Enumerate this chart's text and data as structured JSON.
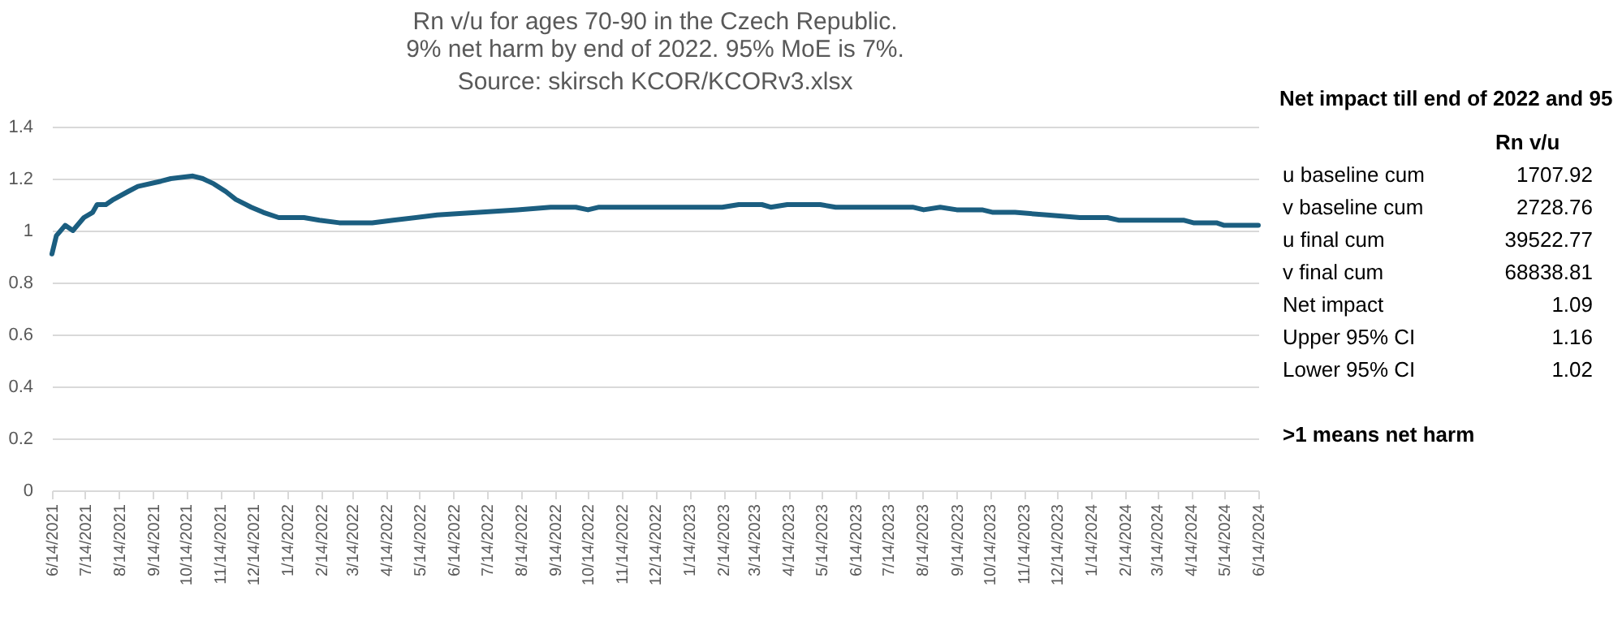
{
  "chart_data": [
    {
      "type": "line",
      "title": "Rn v/u for ages 70-90 in the Czech Republic.",
      "subtitle": "9% net harm by end of 2022. 95% MoE is 7%.",
      "annotations": [
        "Source: skirsch KCOR/KCORv3.xlsx"
      ],
      "x": [
        "2021-06-14",
        "2021-06-18",
        "2021-06-26",
        "2021-07-03",
        "2021-07-13",
        "2021-07-21",
        "2021-07-25",
        "2021-08-02",
        "2021-08-09",
        "2021-08-22",
        "2021-08-31",
        "2021-09-21",
        "2021-09-30",
        "2021-10-20",
        "2021-10-29",
        "2021-11-08",
        "2021-11-19",
        "2021-11-28",
        "2021-12-12",
        "2021-12-23",
        "2022-01-06",
        "2022-01-29",
        "2022-02-12",
        "2022-03-02",
        "2022-04-01",
        "2022-04-20",
        "2022-05-30",
        "2022-07-07",
        "2022-08-11",
        "2022-09-10",
        "2022-10-03",
        "2022-10-14",
        "2022-10-24",
        "2022-12-12",
        "2023-02-13",
        "2023-02-28",
        "2023-03-21",
        "2023-03-29",
        "2023-04-13",
        "2023-05-13",
        "2023-05-27",
        "2023-08-05",
        "2023-08-15",
        "2023-08-30",
        "2023-09-14",
        "2023-10-07",
        "2023-10-17",
        "2023-11-06",
        "2023-12-05",
        "2024-01-04",
        "2024-01-29",
        "2024-02-08",
        "2024-02-27",
        "2024-03-08",
        "2024-04-07",
        "2024-04-16",
        "2024-05-07",
        "2024-05-14",
        "2024-05-30",
        "2024-06-14"
      ],
      "series": [
        {
          "color": "#1b5e80",
          "values": [
            0.91,
            0.98,
            1.02,
            1.0,
            1.05,
            1.07,
            1.1,
            1.1,
            1.12,
            1.15,
            1.17,
            1.19,
            1.2,
            1.21,
            1.2,
            1.18,
            1.15,
            1.12,
            1.09,
            1.07,
            1.05,
            1.05,
            1.04,
            1.03,
            1.03,
            1.04,
            1.06,
            1.07,
            1.08,
            1.09,
            1.09,
            1.08,
            1.09,
            1.09,
            1.09,
            1.1,
            1.1,
            1.09,
            1.1,
            1.1,
            1.09,
            1.09,
            1.08,
            1.09,
            1.08,
            1.08,
            1.07,
            1.07,
            1.06,
            1.05,
            1.05,
            1.04,
            1.04,
            1.04,
            1.04,
            1.03,
            1.03,
            1.02,
            1.02,
            1.02
          ]
        }
      ],
      "xlim": [
        "2021-06-14",
        "2024-06-14"
      ],
      "xticks": [
        {
          "value": "2021-06-14",
          "label": "6/14/2021"
        },
        {
          "value": "2021-07-14",
          "label": "7/14/2021"
        },
        {
          "value": "2021-08-14",
          "label": "8/14/2021"
        },
        {
          "value": "2021-09-14",
          "label": "9/14/2021"
        },
        {
          "value": "2021-10-14",
          "label": "10/14/2021"
        },
        {
          "value": "2021-11-14",
          "label": "11/14/2021"
        },
        {
          "value": "2021-12-14",
          "label": "12/14/2021"
        },
        {
          "value": "2022-01-14",
          "label": "1/14/2022"
        },
        {
          "value": "2022-02-14",
          "label": "2/14/2022"
        },
        {
          "value": "2022-03-14",
          "label": "3/14/2022"
        },
        {
          "value": "2022-04-14",
          "label": "4/14/2022"
        },
        {
          "value": "2022-05-14",
          "label": "5/14/2022"
        },
        {
          "value": "2022-06-14",
          "label": "6/14/2022"
        },
        {
          "value": "2022-07-14",
          "label": "7/14/2022"
        },
        {
          "value": "2022-08-14",
          "label": "8/14/2022"
        },
        {
          "value": "2022-09-14",
          "label": "9/14/2022"
        },
        {
          "value": "2022-10-14",
          "label": "10/14/2022"
        },
        {
          "value": "2022-11-14",
          "label": "11/14/2022"
        },
        {
          "value": "2022-12-14",
          "label": "12/14/2022"
        },
        {
          "value": "2023-01-14",
          "label": "1/14/2023"
        },
        {
          "value": "2023-02-14",
          "label": "2/14/2023"
        },
        {
          "value": "2023-03-14",
          "label": "3/14/2023"
        },
        {
          "value": "2023-04-14",
          "label": "4/14/2023"
        },
        {
          "value": "2023-05-14",
          "label": "5/14/2023"
        },
        {
          "value": "2023-06-14",
          "label": "6/14/2023"
        },
        {
          "value": "2023-07-14",
          "label": "7/14/2023"
        },
        {
          "value": "2023-08-14",
          "label": "8/14/2023"
        },
        {
          "value": "2023-09-14",
          "label": "9/14/2023"
        },
        {
          "value": "2023-10-14",
          "label": "10/14/2023"
        },
        {
          "value": "2023-11-14",
          "label": "11/14/2023"
        },
        {
          "value": "2023-12-14",
          "label": "12/14/2023"
        },
        {
          "value": "2024-01-14",
          "label": "1/14/2024"
        },
        {
          "value": "2024-02-14",
          "label": "2/14/2024"
        },
        {
          "value": "2024-03-14",
          "label": "3/14/2024"
        },
        {
          "value": "2024-04-14",
          "label": "4/14/2024"
        },
        {
          "value": "2024-05-14",
          "label": "5/14/2024"
        },
        {
          "value": "2024-06-14",
          "label": "6/14/2024"
        }
      ],
      "ylim": [
        0,
        1.4
      ],
      "yticks": [
        0,
        0.2,
        0.4,
        0.6,
        0.8,
        1,
        1.2,
        1.4
      ],
      "grid": "y",
      "legend": false
    },
    {
      "type": "other",
      "title": "Net impact till end of 2022 and 95",
      "ylabel": "Rn v/u",
      "categories": [
        "u baseline cum",
        "v baseline cum",
        "u final cum",
        "v final cum",
        "Net impact",
        "Upper 95% CI",
        "Lower 95% CI"
      ],
      "values": [
        1707.92,
        2728.76,
        39522.77,
        68838.81,
        1.09,
        1.16,
        1.02
      ],
      "data_labels": true,
      "annotations": [
        ">1 means net harm"
      ]
    }
  ]
}
